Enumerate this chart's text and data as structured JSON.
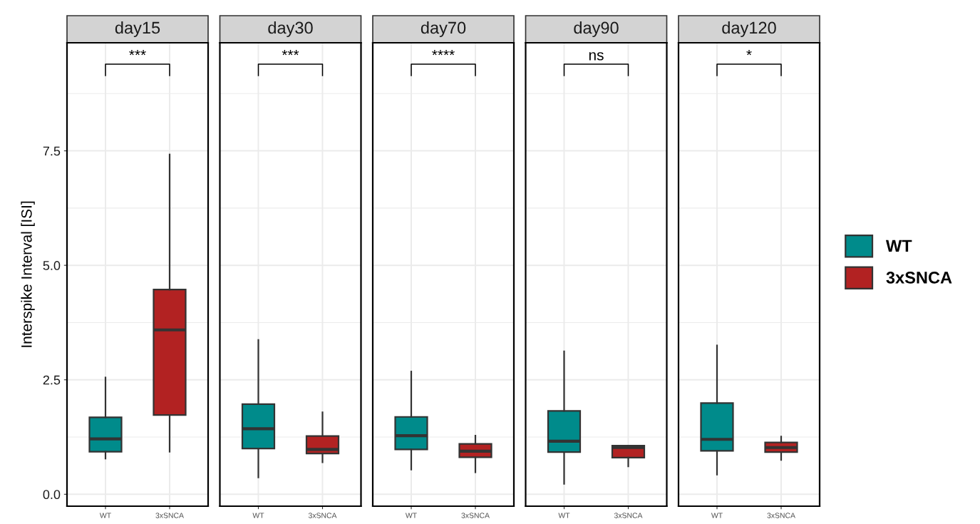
{
  "chart_data": [
    {
      "type": "box",
      "title": "day15",
      "ylabel": "Interspike Interval [ISI]",
      "categories": [
        "WT",
        "3xSNCA"
      ],
      "ylim": [
        -0.26,
        9.86
      ],
      "yticks": [
        {
          "value": 0,
          "label": "0.0"
        },
        {
          "value": 2.5,
          "label": "2.5"
        },
        {
          "value": 5,
          "label": "5.0"
        },
        {
          "value": 7.5,
          "label": "7.5"
        }
      ],
      "grid": true,
      "legend": "right",
      "annotations": [
        "***"
      ],
      "series": [
        {
          "name": "WT",
          "color": "#008b8b",
          "boxes": [
            {
              "low": 0.78,
              "q1": 0.93,
              "median": 1.21,
              "q3": 1.68,
              "high": 2.55
            },
            null
          ]
        },
        {
          "name": "3xSNCA",
          "color": "#b22222",
          "boxes": [
            null,
            {
              "low": 0.93,
              "q1": 1.73,
              "median": 3.59,
              "q3": 4.47,
              "high": 7.42
            }
          ]
        }
      ]
    },
    {
      "type": "box",
      "title": "day30",
      "categories": [
        "WT",
        "3xSNCA"
      ],
      "ylim": [
        -0.26,
        9.86
      ],
      "yticks": [
        0,
        2.5,
        5,
        7.5
      ],
      "grid": true,
      "tick_labels": "x",
      "annotations": [
        "***"
      ],
      "series": [
        {
          "color": "#008b8b",
          "boxes": [
            {
              "low": 0.37,
              "q1": 1.0,
              "median": 1.43,
              "q3": 1.97,
              "high": 3.37
            },
            null
          ]
        },
        {
          "color": "#b22222",
          "boxes": [
            null,
            {
              "low": 0.7,
              "q1": 0.89,
              "median": 0.98,
              "q3": 1.27,
              "high": 1.79
            }
          ]
        }
      ]
    },
    {
      "type": "box",
      "title": "day70",
      "categories": [
        "WT",
        "3xSNCA"
      ],
      "ylim": [
        -0.26,
        9.86
      ],
      "yticks": [
        0,
        2.5,
        5,
        7.5
      ],
      "grid": true,
      "tick_labels": "x",
      "annotations": [
        "****"
      ],
      "series": [
        {
          "color": "#008b8b",
          "boxes": [
            {
              "low": 0.54,
              "q1": 0.98,
              "median": 1.28,
              "q3": 1.69,
              "high": 2.68
            },
            null
          ]
        },
        {
          "color": "#b22222",
          "boxes": [
            null,
            {
              "low": 0.48,
              "q1": 0.81,
              "median": 0.94,
              "q3": 1.1,
              "high": 1.28
            }
          ]
        }
      ]
    },
    {
      "type": "box",
      "title": "day90",
      "categories": [
        "WT",
        "3xSNCA"
      ],
      "ylim": [
        -0.26,
        9.86
      ],
      "yticks": [
        0,
        2.5,
        5,
        7.5
      ],
      "grid": true,
      "tick_labels": "x",
      "annotations": [
        "ns"
      ],
      "series": [
        {
          "color": "#008b8b",
          "boxes": [
            {
              "low": 0.23,
              "q1": 0.92,
              "median": 1.16,
              "q3": 1.82,
              "high": 3.12
            },
            null
          ]
        },
        {
          "color": "#b22222",
          "boxes": [
            null,
            {
              "low": 0.61,
              "q1": 0.8,
              "median": 1.02,
              "q3": 1.06,
              "high": 1.06
            }
          ]
        }
      ]
    },
    {
      "type": "box",
      "title": "day120",
      "categories": [
        "WT",
        "3xSNCA"
      ],
      "ylim": [
        -0.26,
        9.86
      ],
      "yticks": [
        0,
        2.5,
        5,
        7.5
      ],
      "grid": true,
      "tick_labels": "x",
      "annotations": [
        "*"
      ],
      "series": [
        {
          "color": "#008b8b",
          "boxes": [
            {
              "low": 0.43,
              "q1": 0.95,
              "median": 1.2,
              "q3": 1.99,
              "high": 3.25
            },
            null
          ]
        },
        {
          "color": "#b22222",
          "boxes": [
            null,
            {
              "low": 0.75,
              "q1": 0.92,
              "median": 1.02,
              "q3": 1.13,
              "high": 1.26
            }
          ]
        }
      ]
    }
  ]
}
